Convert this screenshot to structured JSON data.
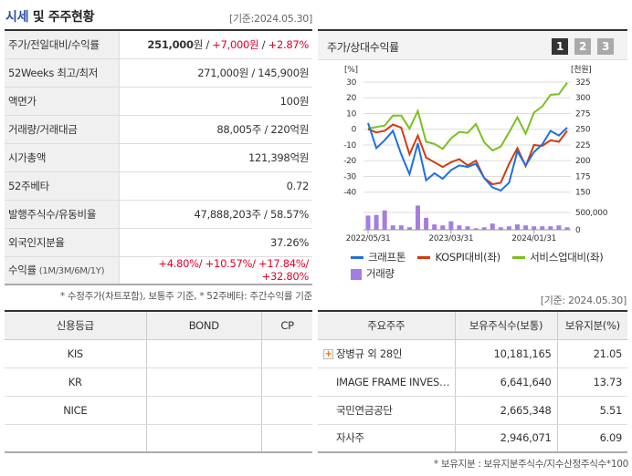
{
  "left": {
    "title_hl": "시세",
    "title_rest": " 및 주주현황",
    "basis": "[기준:2024.05.30]",
    "rows": [
      {
        "label": "주가/전일대비/수익률",
        "price": "251,000",
        "won": "원 / ",
        "change": "+7,000원",
        "sep": " / ",
        "pct": "+2.87%"
      },
      {
        "label": "52Weeks 최고/최저",
        "value": "271,000원 / 145,900원"
      },
      {
        "label": "액면가",
        "value": "100원"
      },
      {
        "label": "거래량/거래대금",
        "value": "88,005주 / 220억원"
      },
      {
        "label": "시가총액",
        "value": "121,398억원"
      },
      {
        "label": "52주베타",
        "value": "0.72"
      },
      {
        "label": "발행주식수/유동비율",
        "value": "47,888,203주 / 58.57%"
      },
      {
        "label": "외국인지분율",
        "value": "37.26%"
      },
      {
        "label": "수익률",
        "sub": " (1M/3M/6M/1Y)",
        "value": "+4.80%/ +10.57%/ +17.84%/ +32.80%"
      }
    ],
    "note": "* 수정주가(차트포함), 보통주 기준, * 52주베타: 주간수익률 기준"
  },
  "credit": {
    "headers": [
      "신용등급",
      "BOND",
      "CP"
    ],
    "rows": [
      [
        "KIS",
        "",
        ""
      ],
      [
        "KR",
        "",
        ""
      ],
      [
        "NICE",
        "",
        ""
      ],
      [
        "",
        "",
        ""
      ]
    ]
  },
  "holders": {
    "basis": "[기준: 2024.05.30]",
    "headers": [
      "주요주주",
      "보유주식수(보통)",
      "보유지분(%)"
    ],
    "rows": [
      {
        "name": "장병규 외 28인",
        "shares": "10,181,165",
        "pct": "21.05",
        "expand": true
      },
      {
        "name": "IMAGE FRAME INVES…",
        "shares": "6,641,640",
        "pct": "13.73"
      },
      {
        "name": "국민연금공단",
        "shares": "2,665,348",
        "pct": "5.51"
      },
      {
        "name": "자사주",
        "shares": "2,946,071",
        "pct": "6.09"
      }
    ],
    "note": "* 보유지분 : 보유지분주식수/지수산정주식수*100"
  },
  "chart_header": {
    "title": "주가/상대수익률",
    "pages": [
      "1",
      "2",
      "3"
    ],
    "active_page": "1"
  },
  "chart_data": {
    "type": "line",
    "left_unit": "[%]",
    "right_unit": "[천원]",
    "left_ticks": [
      30,
      20,
      10,
      0,
      -10,
      -20,
      -30,
      -40
    ],
    "right_ticks": [
      325,
      300,
      275,
      250,
      225,
      200,
      175,
      150
    ],
    "ylim": [
      -40,
      30
    ],
    "right_ylim": [
      150,
      325
    ],
    "x_labels": [
      "2022/05/31",
      "2023/03/31",
      "2024/01/31"
    ],
    "volume_ticks": [
      "500,000",
      "0"
    ],
    "volume_max": 500000,
    "series": [
      {
        "name": "크래프톤",
        "color": "#1f6fe0",
        "values": [
          4,
          -12,
          -7,
          -1,
          -16,
          -28.6,
          -9,
          -32.5,
          -28,
          -31.5,
          -26,
          -23,
          -24,
          -22,
          -31,
          -37,
          -39,
          -34,
          -14,
          -23,
          -14.5,
          -9.6,
          -1,
          -4,
          1
        ]
      },
      {
        "name": "KOSPI대비(좌)",
        "color": "#d23a10",
        "values": [
          0,
          -2,
          -1,
          3,
          1,
          -16,
          -4,
          -18,
          -21,
          -24,
          -21,
          -19,
          -23,
          -20,
          -31,
          -35,
          -34,
          -22,
          -12,
          -23.5,
          -10,
          -10.6,
          -7,
          -8,
          -1
        ]
      },
      {
        "name": "서비스업대비(좌)",
        "color": "#7ac01e",
        "values": [
          0.4,
          1.4,
          2.3,
          8.7,
          8.7,
          0.4,
          11.6,
          -8,
          -9.3,
          -12.5,
          -5.8,
          -1.7,
          -2.3,
          3.3,
          -8.3,
          -13.5,
          -11,
          -2,
          7.6,
          -2.8,
          10.6,
          14.5,
          21.9,
          22.3,
          29.6
        ]
      }
    ],
    "volume": {
      "name": "거래량",
      "color": "#a57de0",
      "values": [
        410000,
        430000,
        560000,
        127000,
        127000,
        73000,
        700000,
        345000,
        155000,
        127000,
        245000,
        127000,
        100000,
        45000,
        73000,
        180000,
        73000,
        100000,
        155000,
        127000,
        100000,
        100000,
        100000,
        127000,
        73000
      ]
    }
  }
}
